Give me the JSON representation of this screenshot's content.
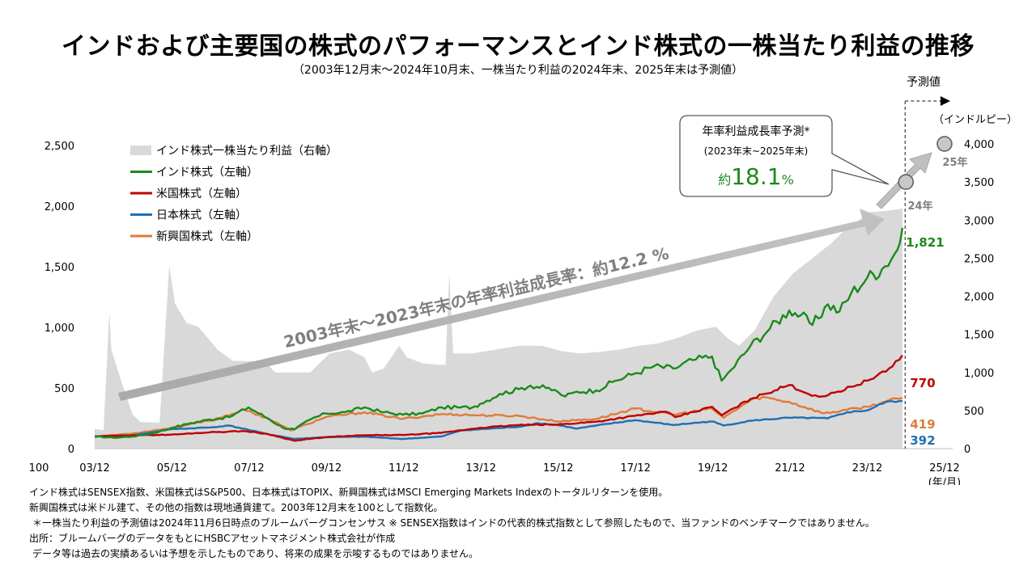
{
  "title": "インドおよび主要国の株式のパフォーマンスとインド株式の一株当たり利益の推移",
  "subtitle": "（2003年12月末～2024年10月末、一株当たり利益の2024年末、2025年末は予測値）",
  "annotations": {
    "forecast_label": "予測値",
    "right_unit": "（インドルピー）",
    "x_unit": "(年/月)",
    "growth_arrow_text": "2003年末～2023年末の年率利益成長率：約12.2 %",
    "callout_line1": "年率利益成長率予測*",
    "callout_line2": "(2023年末~2025年末)",
    "callout_prefix": "約",
    "callout_value": "18.1",
    "callout_suffix": "%",
    "eps_24_label": "24年",
    "eps_25_label": "25年",
    "end_india": "1,821",
    "end_us": "770",
    "end_em": "419",
    "end_japan": "392"
  },
  "legend": [
    {
      "label": "インド株式一株当たり利益（右軸）",
      "color": "#d9d9d9",
      "kind": "area"
    },
    {
      "label": "インド株式（左軸）",
      "color": "#1a8a1a",
      "kind": "line"
    },
    {
      "label": "米国株式（左軸）",
      "color": "#c00000",
      "kind": "line"
    },
    {
      "label": "日本株式（左軸）",
      "color": "#1f6fb5",
      "kind": "line"
    },
    {
      "label": "新興国株式（左軸）",
      "color": "#e07b39",
      "kind": "line"
    }
  ],
  "notes": [
    "インド株式はSENSEX指数、米国株式はS&P500、日本株式はTOPIX、新興国株式はMSCI Emerging Markets Indexのトータルリターンを使用。",
    "新興国株式は米ドル建て、その他の指数は現地通貨建て。2003年12月末を100として指数化。",
    "＊一株当たり利益の予測値は2024年11月6日時点のブルームバーグコンセンサス ※ SENSEX指数はインドの代表的株式指数として参照したもので、当ファンドのベンチマークではありません。",
    "出所：ブルームバーグのデータをもとにHSBCアセットマネジメント株式会社が作成",
    "データ等は過去の実績あるいは予想を示したものであり、将来の成果を示唆するものではありません。"
  ],
  "chart_data": {
    "type": "line",
    "x_tick_labels": [
      "03/12",
      "05/12",
      "07/12",
      "09/12",
      "11/12",
      "13/12",
      "15/12",
      "17/12",
      "19/12",
      "21/12",
      "23/12",
      "25/12"
    ],
    "x_range": [
      2003.92,
      2025.92
    ],
    "left_axis": {
      "ticks": [
        "0",
        "500",
        "1,000",
        "1,500",
        "2,000",
        "2,500"
      ],
      "bottom_label": "100",
      "range": [
        0,
        2500
      ]
    },
    "right_axis": {
      "ticks": [
        "0",
        "500",
        "1,000",
        "1,500",
        "2,000",
        "2,500",
        "3,000",
        "3,500",
        "4,000"
      ],
      "range": [
        0,
        4000
      ]
    },
    "eps_area": {
      "name": "インド株式一株当たり利益（右軸）",
      "color": "#d9d9d9",
      "points": [
        [
          2003.92,
          260
        ],
        [
          2004.15,
          240
        ],
        [
          2004.3,
          1800
        ],
        [
          2004.35,
          1300
        ],
        [
          2004.6,
          900
        ],
        [
          2004.9,
          450
        ],
        [
          2005.1,
          350
        ],
        [
          2005.6,
          340
        ],
        [
          2005.85,
          2400
        ],
        [
          2006.0,
          1900
        ],
        [
          2006.3,
          1650
        ],
        [
          2006.6,
          1600
        ],
        [
          2007.1,
          1300
        ],
        [
          2007.5,
          1150
        ],
        [
          2007.9,
          1150
        ],
        [
          2008.0,
          1150
        ],
        [
          2008.3,
          1150
        ],
        [
          2008.6,
          1000
        ],
        [
          2009.1,
          1000
        ],
        [
          2009.5,
          1000
        ],
        [
          2010.0,
          1250
        ],
        [
          2010.5,
          1300
        ],
        [
          2010.9,
          1200
        ],
        [
          2011.1,
          1000
        ],
        [
          2011.4,
          1050
        ],
        [
          2011.8,
          1350
        ],
        [
          2012.0,
          1200
        ],
        [
          2012.4,
          1120
        ],
        [
          2012.8,
          1100
        ],
        [
          2013.0,
          1100
        ],
        [
          2013.1,
          2300
        ],
        [
          2013.2,
          1250
        ],
        [
          2013.7,
          1250
        ],
        [
          2014.3,
          1300
        ],
        [
          2014.9,
          1350
        ],
        [
          2015.5,
          1350
        ],
        [
          2016.0,
          1280
        ],
        [
          2016.5,
          1250
        ],
        [
          2017.0,
          1270
        ],
        [
          2017.5,
          1300
        ],
        [
          2018.0,
          1350
        ],
        [
          2018.5,
          1380
        ],
        [
          2019.0,
          1450
        ],
        [
          2019.5,
          1550
        ],
        [
          2020.0,
          1600
        ],
        [
          2020.3,
          1450
        ],
        [
          2020.6,
          1350
        ],
        [
          2021.0,
          1550
        ],
        [
          2021.5,
          2000
        ],
        [
          2022.0,
          2300
        ],
        [
          2022.5,
          2500
        ],
        [
          2023.0,
          2700
        ],
        [
          2023.3,
          2850
        ],
        [
          2023.6,
          2950
        ],
        [
          2023.92,
          3100
        ],
        [
          2024.4,
          3120
        ],
        [
          2024.83,
          3150
        ]
      ]
    },
    "eps_forecast": [
      {
        "label": "24年",
        "x": 2024.92,
        "y": 3500
      },
      {
        "label": "25年",
        "x": 2025.92,
        "y": 4000
      }
    ],
    "series": [
      {
        "name": "インド株式（左軸）",
        "color": "#1a8a1a",
        "end_label": "1,821",
        "points": [
          [
            2003.92,
            100
          ],
          [
            2004.4,
            90
          ],
          [
            2004.9,
            100
          ],
          [
            2005.4,
            125
          ],
          [
            2005.9,
            170
          ],
          [
            2006.4,
            210
          ],
          [
            2006.9,
            240
          ],
          [
            2007.4,
            260
          ],
          [
            2007.9,
            340
          ],
          [
            2008.4,
            250
          ],
          [
            2008.8,
            170
          ],
          [
            2009.1,
            160
          ],
          [
            2009.5,
            240
          ],
          [
            2009.9,
            290
          ],
          [
            2010.4,
            300
          ],
          [
            2010.9,
            340
          ],
          [
            2011.4,
            300
          ],
          [
            2011.9,
            280
          ],
          [
            2012.4,
            290
          ],
          [
            2012.9,
            340
          ],
          [
            2013.4,
            340
          ],
          [
            2013.7,
            340
          ],
          [
            2013.9,
            370
          ],
          [
            2014.4,
            450
          ],
          [
            2014.9,
            490
          ],
          [
            2015.2,
            520
          ],
          [
            2015.6,
            500
          ],
          [
            2015.9,
            470
          ],
          [
            2016.1,
            430
          ],
          [
            2016.4,
            470
          ],
          [
            2016.9,
            480
          ],
          [
            2017.4,
            560
          ],
          [
            2017.9,
            620
          ],
          [
            2018.4,
            680
          ],
          [
            2018.9,
            660
          ],
          [
            2019.4,
            730
          ],
          [
            2019.9,
            760
          ],
          [
            2020.15,
            560
          ],
          [
            2020.4,
            650
          ],
          [
            2020.9,
            850
          ],
          [
            2021.4,
            990
          ],
          [
            2021.9,
            1140
          ],
          [
            2022.2,
            1100
          ],
          [
            2022.5,
            1020
          ],
          [
            2022.9,
            1190
          ],
          [
            2023.2,
            1130
          ],
          [
            2023.5,
            1280
          ],
          [
            2023.92,
            1410
          ],
          [
            2024.3,
            1480
          ],
          [
            2024.7,
            1640
          ],
          [
            2024.83,
            1821
          ]
        ]
      },
      {
        "name": "米国株式（左軸）",
        "color": "#c00000",
        "end_label": "770",
        "points": [
          [
            2003.92,
            100
          ],
          [
            2004.9,
            110
          ],
          [
            2005.9,
            115
          ],
          [
            2006.9,
            135
          ],
          [
            2007.8,
            145
          ],
          [
            2008.4,
            120
          ],
          [
            2009.1,
            65
          ],
          [
            2009.9,
            95
          ],
          [
            2010.9,
            110
          ],
          [
            2011.9,
            112
          ],
          [
            2012.9,
            130
          ],
          [
            2013.9,
            172
          ],
          [
            2014.9,
            195
          ],
          [
            2015.9,
            198
          ],
          [
            2016.9,
            222
          ],
          [
            2017.9,
            270
          ],
          [
            2018.7,
            305
          ],
          [
            2018.95,
            260
          ],
          [
            2019.9,
            345
          ],
          [
            2020.15,
            275
          ],
          [
            2020.9,
            410
          ],
          [
            2021.9,
            525
          ],
          [
            2022.4,
            450
          ],
          [
            2022.75,
            430
          ],
          [
            2022.9,
            440
          ],
          [
            2023.5,
            510
          ],
          [
            2023.92,
            560
          ],
          [
            2024.4,
            635
          ],
          [
            2024.83,
            770
          ]
        ]
      },
      {
        "name": "日本株式（左軸）",
        "color": "#1f6fb5",
        "end_label": "392",
        "points": [
          [
            2003.92,
            100
          ],
          [
            2004.9,
            110
          ],
          [
            2005.9,
            160
          ],
          [
            2006.9,
            175
          ],
          [
            2007.4,
            190
          ],
          [
            2007.9,
            155
          ],
          [
            2008.4,
            120
          ],
          [
            2009.1,
            80
          ],
          [
            2009.9,
            95
          ],
          [
            2010.9,
            98
          ],
          [
            2011.9,
            80
          ],
          [
            2012.9,
            100
          ],
          [
            2013.4,
            150
          ],
          [
            2013.9,
            160
          ],
          [
            2014.9,
            180
          ],
          [
            2015.4,
            210
          ],
          [
            2015.9,
            195
          ],
          [
            2016.4,
            165
          ],
          [
            2016.9,
            190
          ],
          [
            2017.9,
            235
          ],
          [
            2018.9,
            195
          ],
          [
            2019.9,
            225
          ],
          [
            2020.2,
            190
          ],
          [
            2020.9,
            230
          ],
          [
            2021.9,
            255
          ],
          [
            2022.9,
            250
          ],
          [
            2023.4,
            300
          ],
          [
            2023.92,
            315
          ],
          [
            2024.4,
            385
          ],
          [
            2024.83,
            392
          ]
        ]
      },
      {
        "name": "新興国株式（左軸）",
        "color": "#e07b39",
        "end_label": "419",
        "points": [
          [
            2003.92,
            100
          ],
          [
            2004.9,
            125
          ],
          [
            2005.9,
            170
          ],
          [
            2006.9,
            230
          ],
          [
            2007.8,
            320
          ],
          [
            2008.4,
            250
          ],
          [
            2009.0,
            150
          ],
          [
            2009.9,
            260
          ],
          [
            2010.9,
            300
          ],
          [
            2011.9,
            245
          ],
          [
            2012.9,
            285
          ],
          [
            2013.9,
            275
          ],
          [
            2014.9,
            270
          ],
          [
            2015.9,
            225
          ],
          [
            2016.9,
            245
          ],
          [
            2017.9,
            330
          ],
          [
            2018.9,
            280
          ],
          [
            2019.9,
            330
          ],
          [
            2020.2,
            255
          ],
          [
            2020.9,
            400
          ],
          [
            2021.2,
            425
          ],
          [
            2021.9,
            385
          ],
          [
            2022.8,
            290
          ],
          [
            2023.4,
            320
          ],
          [
            2023.92,
            345
          ],
          [
            2024.4,
            390
          ],
          [
            2024.83,
            419
          ]
        ]
      }
    ]
  }
}
